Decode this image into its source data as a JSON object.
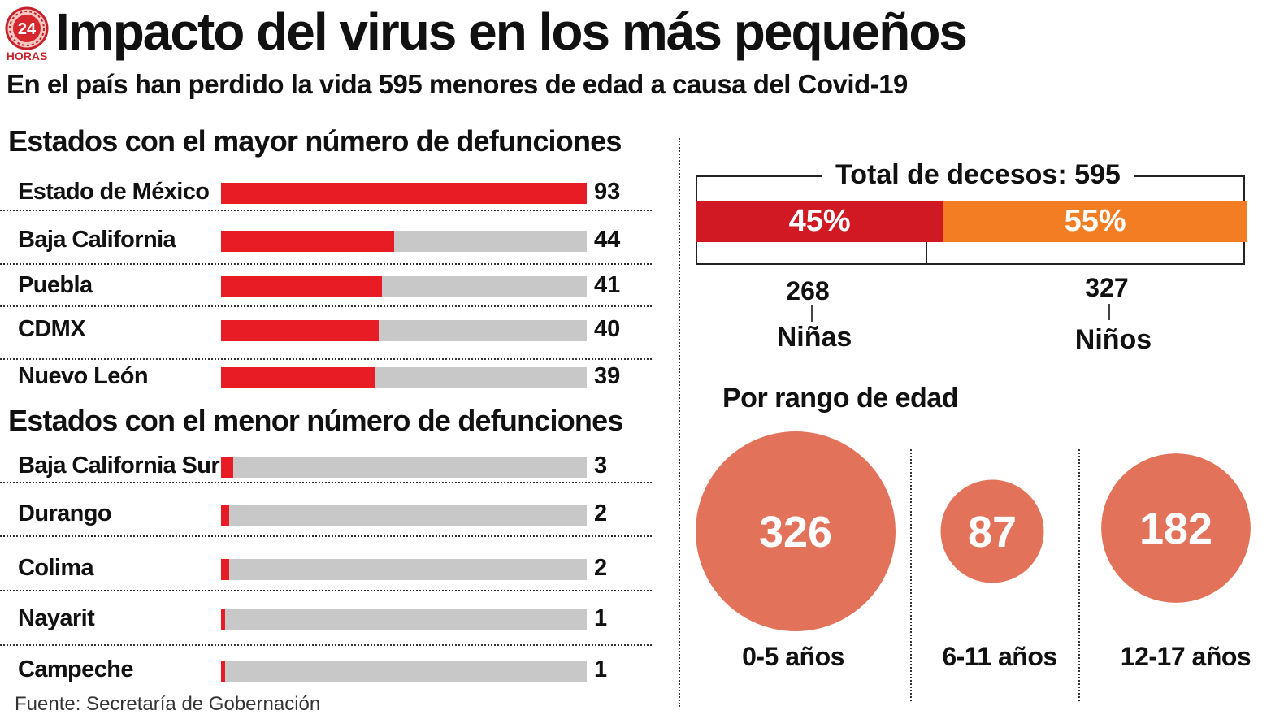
{
  "header": {
    "logo_text": "24 HORAS",
    "title": "Impacto del virus en los más pequeños",
    "subtitle": "En el país han perdido la vida  595 menores de edad a causa del Covid-19"
  },
  "colors": {
    "bar_red": "#e81c24",
    "bar_track": "#c8c8c8",
    "girls": "#d01923",
    "boys": "#f27d22",
    "age_circle": "#e2735a"
  },
  "source": "Fuente: Secretaría de Gobernación",
  "chart_data": [
    {
      "type": "bar",
      "orientation": "horizontal",
      "title": "Estados  con el mayor número de defunciones",
      "categories": [
        "Estado de México",
        "Baja California",
        "Puebla",
        "CDMX",
        "Nuevo León"
      ],
      "values": [
        93,
        44,
        41,
        40,
        39
      ],
      "xlim": [
        0,
        93
      ]
    },
    {
      "type": "bar",
      "orientation": "horizontal",
      "title": "Estados  con el menor número de defunciones",
      "categories": [
        "Baja California Sur",
        "Durango",
        "Colima",
        "Nayarit",
        "Campeche"
      ],
      "values": [
        3,
        2,
        2,
        1,
        1
      ],
      "xlim": [
        0,
        93
      ]
    },
    {
      "type": "bar",
      "stacked": true,
      "title": "Total de decesos: 595",
      "total": 595,
      "categories": [
        "Niñas",
        "Niños"
      ],
      "values": [
        268,
        327
      ],
      "percent_labels": [
        "45%",
        "55%"
      ]
    },
    {
      "type": "scatter",
      "variant": "bubble",
      "title": "Por rango de edad",
      "categories": [
        "0-5 años",
        "6-11 años",
        "12-17 años"
      ],
      "values": [
        326,
        87,
        182
      ]
    }
  ]
}
